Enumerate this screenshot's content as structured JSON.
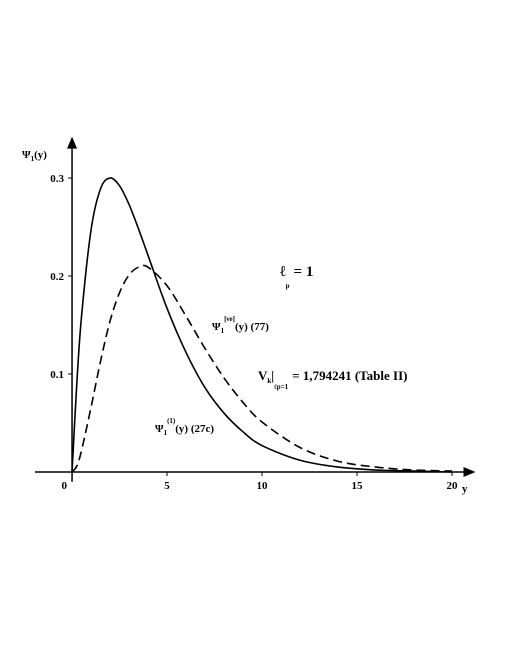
{
  "chart_data": {
    "type": "line",
    "y_label": {
      "base": "Ψ",
      "sub": "1",
      "rest": "(y)"
    },
    "x_label": "y",
    "x": [
      0,
      0.25,
      0.5,
      1,
      1.5,
      2,
      2.5,
      3,
      3.5,
      4,
      5,
      6,
      7,
      8,
      9,
      10,
      12,
      14,
      16,
      18,
      20
    ],
    "series": [
      {
        "style": "solid",
        "color": "#000000",
        "values": [
          0,
          0.09,
          0.159,
          0.247,
          0.289,
          0.3,
          0.292,
          0.273,
          0.248,
          0.221,
          0.167,
          0.122,
          0.086,
          0.06,
          0.041,
          0.027,
          0.012,
          0.005,
          0.002,
          0.001,
          0
        ]
      },
      {
        "style": "dashed",
        "color": "#000000",
        "values": [
          0,
          0.006,
          0.022,
          0.066,
          0.113,
          0.154,
          0.183,
          0.201,
          0.209,
          0.209,
          0.19,
          0.159,
          0.126,
          0.096,
          0.071,
          0.051,
          0.025,
          0.011,
          0.005,
          0.002,
          0.001
        ]
      }
    ],
    "xlim": [
      -1.95,
      20.5
    ],
    "ylim": [
      -0.01,
      0.33
    ],
    "xticks": [
      0,
      5,
      10,
      15,
      20
    ],
    "yticks": [
      0.1,
      0.2,
      0.3
    ],
    "annotations": [
      {
        "base": "ℓ",
        "sub": "p",
        "rest": "= 1"
      },
      {
        "base": "Ψ",
        "sub": "1",
        "sup": "[νe]",
        "rest": "(y)  (77)"
      },
      {
        "base": "V",
        "sub": "k",
        "cond": "ℓp=1",
        "rest": "= 1,794241 (Table II)"
      },
      {
        "base": "Ψ",
        "sub": "1",
        "sup": "(1)",
        "rest": "(y)  (27c)"
      }
    ]
  }
}
